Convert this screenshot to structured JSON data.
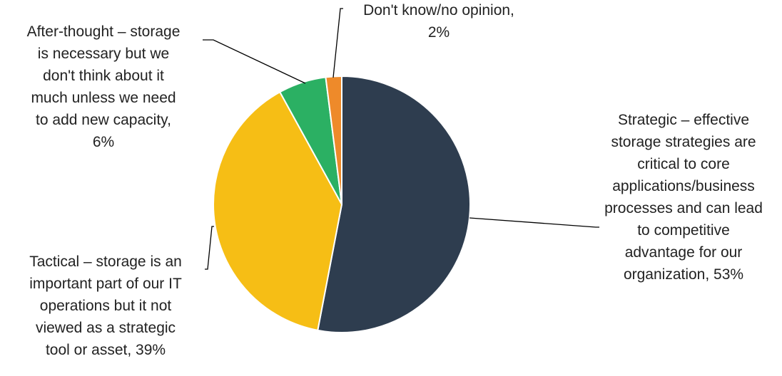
{
  "chart_data": {
    "type": "pie",
    "title": "",
    "slices": [
      {
        "label": "Strategic – effective storage strategies are critical to core applications/business processes and can lead to competitive advantage for our organization",
        "value": 53,
        "value_label": "53%",
        "color": "#2e3d4f",
        "label_lines": [
          "Strategic – effective",
          "storage strategies are",
          "critical to core",
          "applications/business",
          "processes and can lead",
          "to competitive",
          "advantage for our",
          "organization, 53%"
        ]
      },
      {
        "label": "Tactical – storage is an important part of our IT operations but it not viewed as a strategic tool or asset",
        "value": 39,
        "value_label": "39%",
        "color": "#f6be15",
        "label_lines": [
          "Tactical – storage is an",
          "important part of our IT",
          "operations but it not",
          "viewed as a strategic",
          "tool or asset, 39%"
        ]
      },
      {
        "label": "After-thought – storage is necessary but we don't think about it much unless we need to add new capacity",
        "value": 6,
        "value_label": "6%",
        "color": "#2bb063",
        "label_lines": [
          "After-thought – storage",
          "is necessary but we",
          "don't think about it",
          "much unless we need",
          "to add new capacity,",
          "6%"
        ]
      },
      {
        "label": "Don't know/no opinion",
        "value": 2,
        "value_label": "2%",
        "color": "#ee8a2a",
        "label_lines": [
          "Don't know/no opinion,",
          "2%"
        ]
      }
    ],
    "start_angle_deg": 0,
    "direction": "clockwise",
    "legend": "none",
    "data_labels": "outside-with-leader-lines"
  }
}
